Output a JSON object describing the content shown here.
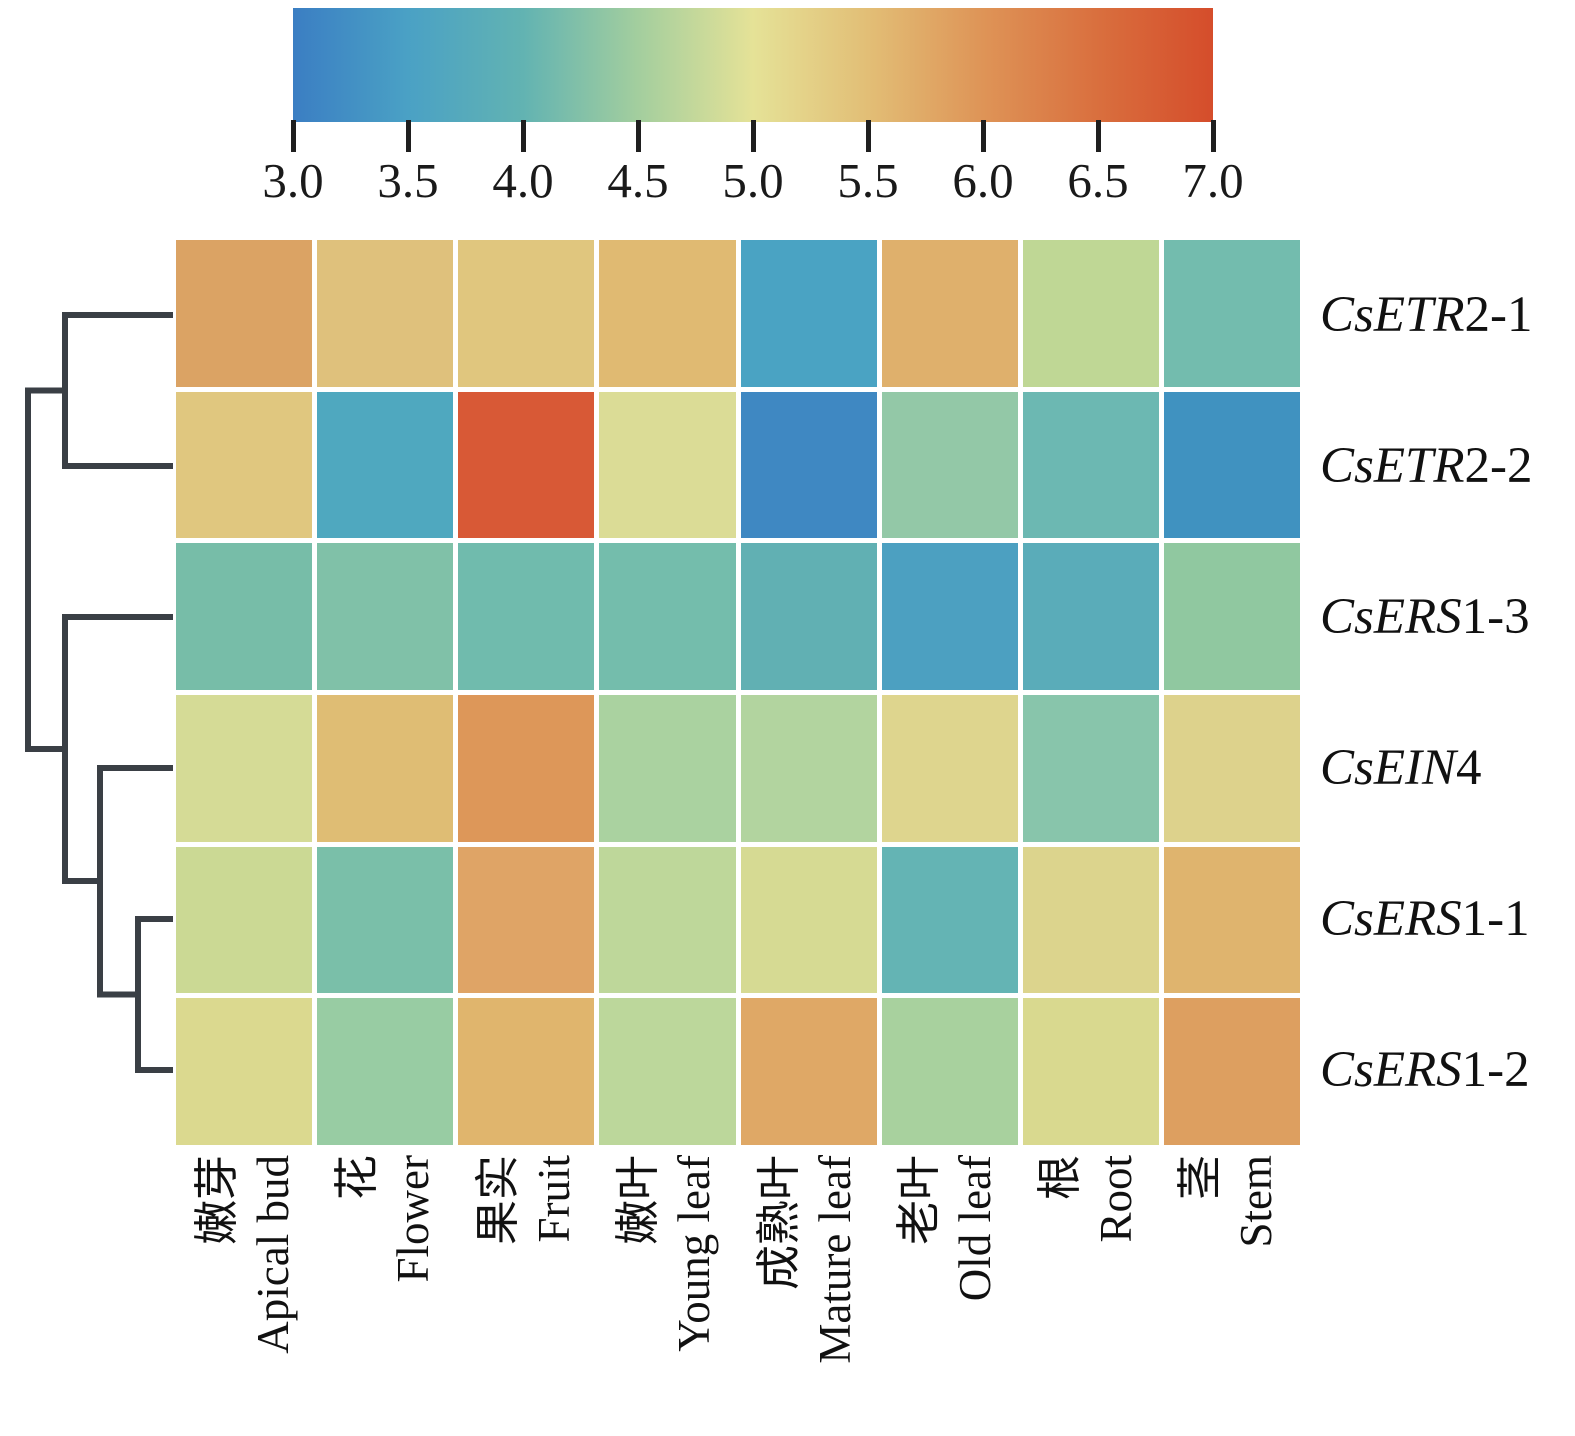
{
  "figure": {
    "background": "#FFFFFF"
  },
  "colorbar": {
    "min": 3.0,
    "max": 7.0,
    "tick_labels": [
      "3.0",
      "3.5",
      "4.0",
      "4.5",
      "5.0",
      "5.5",
      "6.0",
      "6.5",
      "7.0"
    ],
    "gradient_stops": [
      "#3B7EC3",
      "#4AA1C5",
      "#62B3B2",
      "#A3CE9E",
      "#E5E297",
      "#E2BE76",
      "#DE9457",
      "#D96F3E",
      "#D54D2B"
    ],
    "tick_color": "#1F1F1F"
  },
  "chart_data": {
    "type": "heatmap",
    "title": "",
    "legend_position": "top",
    "scale": {
      "min": 3.0,
      "max": 7.0,
      "ticks": [
        3.0,
        3.5,
        4.0,
        4.5,
        5.0,
        5.5,
        6.0,
        6.5,
        7.0
      ]
    },
    "rows": [
      "CsETR2-1",
      "CsETR2-2",
      "CsERS1-3",
      "CsEIN4",
      "CsERS1-1",
      "CsERS1-2"
    ],
    "row_label_parts": [
      {
        "italic": "CsETR",
        "roman": "2-1"
      },
      {
        "italic": "CsETR",
        "roman": "2-2"
      },
      {
        "italic": "CsERS",
        "roman": "1-3"
      },
      {
        "italic": "CsEIN",
        "roman": "4"
      },
      {
        "italic": "CsERS",
        "roman": "1-1"
      },
      {
        "italic": "CsERS",
        "roman": "1-2"
      }
    ],
    "columns": [
      {
        "zh": "嫩芽",
        "en": "Apical bud"
      },
      {
        "zh": "花",
        "en": "Flower"
      },
      {
        "zh": "果实",
        "en": "Fruit"
      },
      {
        "zh": "嫩叶",
        "en": "Young leaf"
      },
      {
        "zh": "成熟叶",
        "en": "Mature leaf"
      },
      {
        "zh": "老叶",
        "en": "Old leaf"
      },
      {
        "zh": "根",
        "en": "Root"
      },
      {
        "zh": "茎",
        "en": "Stem"
      }
    ],
    "values": [
      [
        5.8,
        5.4,
        5.4,
        5.6,
        3.6,
        5.7,
        4.8,
        4.2
      ],
      [
        5.3,
        3.6,
        6.9,
        5.0,
        3.2,
        4.4,
        4.1,
        3.4
      ],
      [
        4.2,
        4.3,
        4.1,
        4.2,
        4.0,
        3.6,
        3.8,
        4.4
      ],
      [
        4.9,
        5.5,
        6.0,
        4.6,
        4.6,
        5.1,
        4.3,
        5.2
      ],
      [
        4.8,
        4.2,
        5.9,
        4.7,
        4.9,
        4.0,
        5.1,
        5.6
      ],
      [
        5.0,
        4.5,
        5.6,
        4.7,
        5.8,
        4.6,
        5.0,
        5.9
      ]
    ],
    "cell_colors": [
      [
        "#DBA364",
        "#DFC17C",
        "#E0C67E",
        "#E0BA72",
        "#4AA3C3",
        "#DFB06C",
        "#BFD795",
        "#73BCAE"
      ],
      [
        "#E0C77F",
        "#4FA8BF",
        "#D85936",
        "#DBDC96",
        "#3F88C2",
        "#93C8A7",
        "#6CB8B2",
        "#4092C0"
      ],
      [
        "#77BDA8",
        "#80C1A8",
        "#70BBAD",
        "#74BDAC",
        "#61B0B3",
        "#4CA0C1",
        "#5AACB9",
        "#90C8A0"
      ],
      [
        "#D5DB96",
        "#DFBD74",
        "#DD9759",
        "#AAD2A0",
        "#B2D49F",
        "#DED58E",
        "#88C5AB",
        "#DDD28C"
      ],
      [
        "#CBD994",
        "#7ABFA9",
        "#DFA466",
        "#BED79A",
        "#D6DA93",
        "#64B4B4",
        "#DCD48D",
        "#DFB46E"
      ],
      [
        "#DBD98F",
        "#98CCA3",
        "#E0B56D",
        "#BCD79B",
        "#DFA866",
        "#A8D19E",
        "#D9D98F",
        "#DD9F60"
      ]
    ],
    "dendrogram_newick": "((CsETR2-1,CsETR2-2),(CsERS1-3,(CsEIN4,(CsERS1-1,CsERS1-2))));"
  },
  "dendrogram": {
    "line_color": "#3A3F45",
    "line_width": 6,
    "paths": [
      "M173 315 H65 V466 H173",
      "M65 390.5 H28 V749 H65",
      "M173 617 H65 V881 H100",
      "M173 768 H100 V994.5 H138",
      "M173 919 H138 V1070 H173"
    ]
  }
}
